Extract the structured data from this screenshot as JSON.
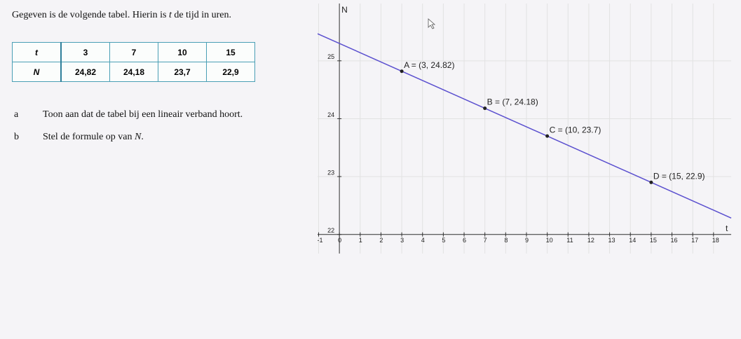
{
  "intro": {
    "before": "Gegeven is de volgende tabel. Hierin is",
    "variable": "t",
    "after": "de tijd in uren."
  },
  "table": {
    "rows": [
      [
        "t",
        "3",
        "7",
        "10",
        "15"
      ],
      [
        "N",
        "24,82",
        "24,18",
        "23,7",
        "22,9"
      ]
    ]
  },
  "questions": [
    {
      "letter": "a",
      "text": "Toon aan dat de tabel bij een lineair verband hoort."
    },
    {
      "letter": "b",
      "text_before": "Stel de formule op van",
      "variable": "N",
      "text_after": "."
    }
  ],
  "chart_data": {
    "type": "line",
    "x_label": "t",
    "y_label": "N",
    "x": [
      3,
      7,
      10,
      15
    ],
    "values": [
      24.82,
      24.18,
      23.7,
      22.9
    ],
    "point_labels": [
      "A = (3, 24.82)",
      "B = (7, 24.18)",
      "C = (10, 23.7)",
      "D = (15, 22.9)"
    ],
    "color": "#5a4fcf",
    "point_color": "#222222",
    "xlim": [
      -1.05,
      18.85
    ],
    "ylim": [
      21.67,
      25.99
    ],
    "xticks": [
      -1,
      0,
      1,
      2,
      3,
      4,
      5,
      6,
      7,
      8,
      9,
      10,
      11,
      12,
      13,
      14,
      15,
      16,
      17,
      18
    ],
    "yticks": [
      22,
      23,
      24,
      25
    ],
    "grid": true
  }
}
